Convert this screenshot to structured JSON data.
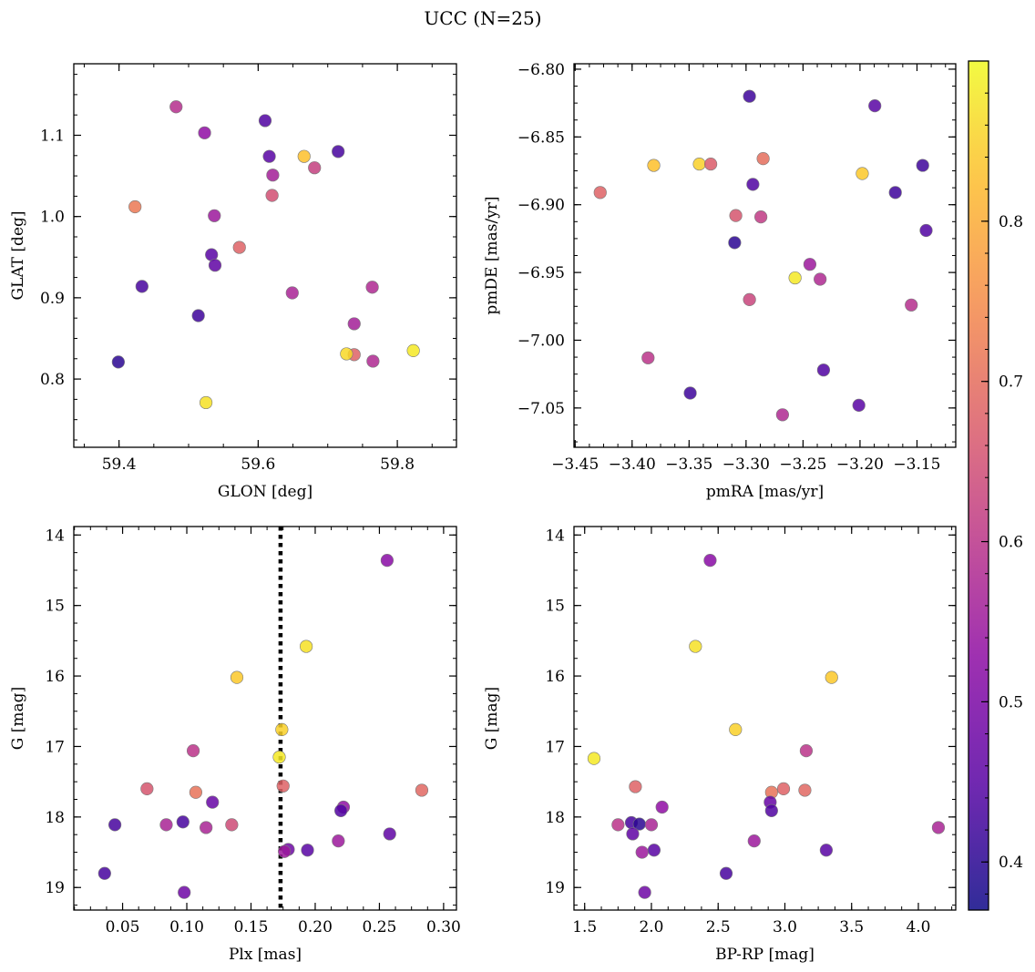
{
  "figure": {
    "title": "UCC (N=25)"
  },
  "colorbar": {
    "range": [
      0.37,
      0.9
    ],
    "ticks": [
      0.4,
      0.5,
      0.6,
      0.7,
      0.8
    ],
    "colormap": "plasma"
  },
  "chart_data": [
    {
      "id": "glon_glat",
      "type": "scatter",
      "title": "",
      "xlabel": "GLON [deg]",
      "ylabel": "GLAT [deg]",
      "xlim": [
        59.335,
        59.885
      ],
      "ylim": [
        0.716,
        1.188
      ],
      "yinvert": false,
      "xticks": [
        "59.4",
        "59.6",
        "59.8"
      ],
      "yticks": [
        "0.8",
        "0.9",
        "1.0",
        "1.1"
      ],
      "xminor": 0.05,
      "yminor": 0.025,
      "points": [
        {
          "x": 59.482,
          "y": 1.135,
          "c": 0.59
        },
        {
          "x": 59.523,
          "y": 1.103,
          "c": 0.53
        },
        {
          "x": 59.61,
          "y": 1.118,
          "c": 0.44
        },
        {
          "x": 59.616,
          "y": 1.074,
          "c": 0.45
        },
        {
          "x": 59.666,
          "y": 1.074,
          "c": 0.83
        },
        {
          "x": 59.715,
          "y": 1.08,
          "c": 0.43
        },
        {
          "x": 59.621,
          "y": 1.051,
          "c": 0.56
        },
        {
          "x": 59.681,
          "y": 1.06,
          "c": 0.62
        },
        {
          "x": 59.62,
          "y": 1.026,
          "c": 0.65
        },
        {
          "x": 59.423,
          "y": 1.012,
          "c": 0.72
        },
        {
          "x": 59.537,
          "y": 1.001,
          "c": 0.55
        },
        {
          "x": 59.573,
          "y": 0.962,
          "c": 0.68
        },
        {
          "x": 59.533,
          "y": 0.953,
          "c": 0.45
        },
        {
          "x": 59.538,
          "y": 0.94,
          "c": 0.46
        },
        {
          "x": 59.433,
          "y": 0.914,
          "c": 0.43
        },
        {
          "x": 59.649,
          "y": 0.906,
          "c": 0.57
        },
        {
          "x": 59.764,
          "y": 0.913,
          "c": 0.58
        },
        {
          "x": 59.514,
          "y": 0.878,
          "c": 0.42
        },
        {
          "x": 59.738,
          "y": 0.868,
          "c": 0.56
        },
        {
          "x": 59.738,
          "y": 0.83,
          "c": 0.68
        },
        {
          "x": 59.727,
          "y": 0.831,
          "c": 0.86
        },
        {
          "x": 59.823,
          "y": 0.835,
          "c": 0.88
        },
        {
          "x": 59.765,
          "y": 0.822,
          "c": 0.58
        },
        {
          "x": 59.399,
          "y": 0.821,
          "c": 0.4
        },
        {
          "x": 59.525,
          "y": 0.771,
          "c": 0.87
        }
      ]
    },
    {
      "id": "pmra_pmde",
      "type": "scatter",
      "title": "",
      "xlabel": "pmRA [mas/yr]",
      "ylabel": "pmDE [mas/yr]",
      "xlim": [
        -3.451,
        -3.116
      ],
      "ylim": [
        -7.079,
        -6.796
      ],
      "yinvert": false,
      "xticks": [
        "−3.45",
        "−3.40",
        "−3.35",
        "−3.30",
        "−3.25",
        "−3.20",
        "−3.15"
      ],
      "yticks": [
        "−7.05",
        "−7.00",
        "−6.95",
        "−6.90",
        "−6.85",
        "−6.80"
      ],
      "xminor": 0.0125,
      "yminor": 0.0125,
      "points": [
        {
          "x": -3.297,
          "y": -6.82,
          "c": 0.42
        },
        {
          "x": -3.187,
          "y": -6.827,
          "c": 0.45
        },
        {
          "x": -3.381,
          "y": -6.871,
          "c": 0.83
        },
        {
          "x": -3.341,
          "y": -6.87,
          "c": 0.85
        },
        {
          "x": -3.331,
          "y": -6.87,
          "c": 0.67
        },
        {
          "x": -3.285,
          "y": -6.866,
          "c": 0.7
        },
        {
          "x": -3.198,
          "y": -6.877,
          "c": 0.84
        },
        {
          "x": -3.145,
          "y": -6.871,
          "c": 0.42
        },
        {
          "x": -3.294,
          "y": -6.885,
          "c": 0.44
        },
        {
          "x": -3.169,
          "y": -6.891,
          "c": 0.42
        },
        {
          "x": -3.428,
          "y": -6.891,
          "c": 0.68
        },
        {
          "x": -3.309,
          "y": -6.908,
          "c": 0.66
        },
        {
          "x": -3.287,
          "y": -6.909,
          "c": 0.61
        },
        {
          "x": -3.142,
          "y": -6.919,
          "c": 0.44
        },
        {
          "x": -3.31,
          "y": -6.928,
          "c": 0.4
        },
        {
          "x": -3.244,
          "y": -6.944,
          "c": 0.55
        },
        {
          "x": -3.257,
          "y": -6.954,
          "c": 0.88
        },
        {
          "x": -3.235,
          "y": -6.955,
          "c": 0.58
        },
        {
          "x": -3.297,
          "y": -6.97,
          "c": 0.63
        },
        {
          "x": -3.155,
          "y": -6.974,
          "c": 0.59
        },
        {
          "x": -3.386,
          "y": -7.013,
          "c": 0.6
        },
        {
          "x": -3.232,
          "y": -7.022,
          "c": 0.44
        },
        {
          "x": -3.349,
          "y": -7.039,
          "c": 0.42
        },
        {
          "x": -3.201,
          "y": -7.048,
          "c": 0.45
        },
        {
          "x": -3.268,
          "y": -7.055,
          "c": 0.58
        }
      ]
    },
    {
      "id": "plx_g",
      "type": "scatter",
      "title": "",
      "xlabel": "Plx [mas]",
      "ylabel": "G [mag]",
      "xlim": [
        0.012,
        0.31
      ],
      "ylim": [
        13.88,
        19.32
      ],
      "yinvert": true,
      "xticks": [
        "0.05",
        "0.10",
        "0.15",
        "0.20",
        "0.25",
        "0.30"
      ],
      "yticks": [
        "14",
        "15",
        "16",
        "17",
        "18",
        "19"
      ],
      "xminor": 0.0125,
      "yminor": 0.25,
      "vline": 0.173,
      "points": [
        {
          "x": 0.256,
          "y": 14.36,
          "c": 0.52
        },
        {
          "x": 0.193,
          "y": 15.58,
          "c": 0.87
        },
        {
          "x": 0.139,
          "y": 16.02,
          "c": 0.84
        },
        {
          "x": 0.174,
          "y": 16.76,
          "c": 0.85
        },
        {
          "x": 0.105,
          "y": 17.06,
          "c": 0.6
        },
        {
          "x": 0.172,
          "y": 17.15,
          "c": 0.88
        },
        {
          "x": 0.069,
          "y": 17.6,
          "c": 0.66
        },
        {
          "x": 0.175,
          "y": 17.56,
          "c": 0.68
        },
        {
          "x": 0.107,
          "y": 17.65,
          "c": 0.71
        },
        {
          "x": 0.283,
          "y": 17.62,
          "c": 0.69
        },
        {
          "x": 0.12,
          "y": 17.79,
          "c": 0.47
        },
        {
          "x": 0.222,
          "y": 17.86,
          "c": 0.53
        },
        {
          "x": 0.22,
          "y": 17.91,
          "c": 0.44
        },
        {
          "x": 0.044,
          "y": 18.11,
          "c": 0.43
        },
        {
          "x": 0.084,
          "y": 18.11,
          "c": 0.57
        },
        {
          "x": 0.097,
          "y": 18.07,
          "c": 0.43
        },
        {
          "x": 0.115,
          "y": 18.15,
          "c": 0.57
        },
        {
          "x": 0.135,
          "y": 18.11,
          "c": 0.64
        },
        {
          "x": 0.258,
          "y": 18.24,
          "c": 0.46
        },
        {
          "x": 0.218,
          "y": 18.34,
          "c": 0.55
        },
        {
          "x": 0.179,
          "y": 18.46,
          "c": 0.48
        },
        {
          "x": 0.176,
          "y": 18.49,
          "c": 0.55
        },
        {
          "x": 0.194,
          "y": 18.47,
          "c": 0.45
        },
        {
          "x": 0.036,
          "y": 18.8,
          "c": 0.43
        },
        {
          "x": 0.098,
          "y": 19.07,
          "c": 0.48
        }
      ]
    },
    {
      "id": "bprp_g",
      "type": "scatter",
      "title": "",
      "xlabel": "BP-RP [mag]",
      "ylabel": "G [mag]",
      "xlim": [
        1.42,
        4.28
      ],
      "ylim": [
        13.88,
        19.32
      ],
      "yinvert": true,
      "xticks": [
        "1.5",
        "2.0",
        "2.5",
        "3.0",
        "3.5",
        "4.0"
      ],
      "yticks": [
        "14",
        "15",
        "16",
        "17",
        "18",
        "19"
      ],
      "xminor": 0.125,
      "yminor": 0.25,
      "points": [
        {
          "x": 2.44,
          "y": 14.36,
          "c": 0.52
        },
        {
          "x": 2.33,
          "y": 15.58,
          "c": 0.87
        },
        {
          "x": 3.35,
          "y": 16.02,
          "c": 0.84
        },
        {
          "x": 2.63,
          "y": 16.76,
          "c": 0.85
        },
        {
          "x": 3.16,
          "y": 17.06,
          "c": 0.6
        },
        {
          "x": 1.57,
          "y": 17.17,
          "c": 0.88
        },
        {
          "x": 1.88,
          "y": 17.57,
          "c": 0.68
        },
        {
          "x": 2.99,
          "y": 17.6,
          "c": 0.68
        },
        {
          "x": 2.9,
          "y": 17.65,
          "c": 0.71
        },
        {
          "x": 3.15,
          "y": 17.62,
          "c": 0.69
        },
        {
          "x": 2.89,
          "y": 17.79,
          "c": 0.47
        },
        {
          "x": 2.08,
          "y": 17.86,
          "c": 0.53
        },
        {
          "x": 2.9,
          "y": 17.91,
          "c": 0.44
        },
        {
          "x": 1.75,
          "y": 18.11,
          "c": 0.6
        },
        {
          "x": 1.85,
          "y": 18.08,
          "c": 0.43
        },
        {
          "x": 1.91,
          "y": 18.1,
          "c": 0.4
        },
        {
          "x": 2.0,
          "y": 18.11,
          "c": 0.57
        },
        {
          "x": 1.86,
          "y": 18.24,
          "c": 0.46
        },
        {
          "x": 2.77,
          "y": 18.34,
          "c": 0.55
        },
        {
          "x": 1.93,
          "y": 18.5,
          "c": 0.55
        },
        {
          "x": 2.02,
          "y": 18.47,
          "c": 0.45
        },
        {
          "x": 3.31,
          "y": 18.47,
          "c": 0.45
        },
        {
          "x": 2.56,
          "y": 18.8,
          "c": 0.43
        },
        {
          "x": 1.95,
          "y": 19.07,
          "c": 0.48
        },
        {
          "x": 4.15,
          "y": 18.15,
          "c": 0.57
        }
      ]
    }
  ]
}
